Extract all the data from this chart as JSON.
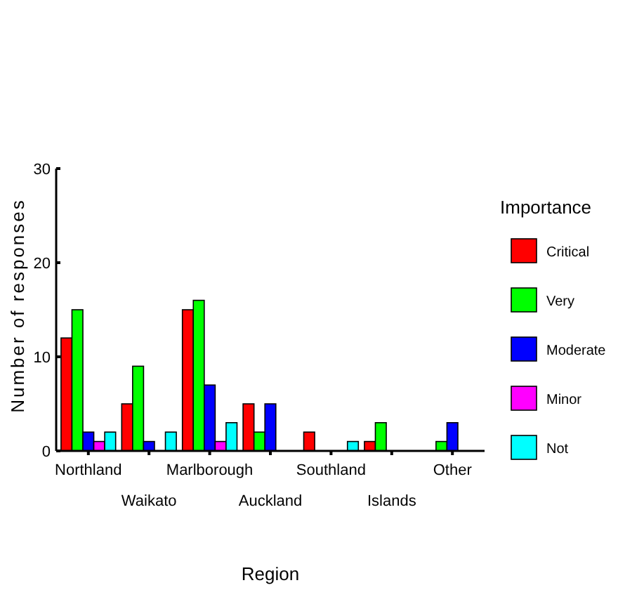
{
  "chart_data": {
    "type": "bar",
    "xlabel": "Region",
    "ylabel": "Number of responses",
    "legend_title": "Importance",
    "legend": "right",
    "grid": false,
    "categories": [
      "Northland",
      "Waikato",
      "Marlborough",
      "Auckland",
      "Southland",
      "Islands",
      "Other"
    ],
    "ylim": [
      0,
      30
    ],
    "yticks": [
      0,
      10,
      20,
      30
    ],
    "series": [
      {
        "name": "Critical",
        "color": "#ff0000",
        "values": [
          12,
          5,
          15,
          5,
          2,
          1,
          null
        ]
      },
      {
        "name": "Very",
        "color": "#00ff00",
        "values": [
          15,
          9,
          16,
          2,
          null,
          3,
          1
        ]
      },
      {
        "name": "Moderate",
        "color": "#0000ff",
        "values": [
          2,
          1,
          7,
          5,
          null,
          null,
          3
        ]
      },
      {
        "name": "Minor",
        "color": "#ff00ff",
        "values": [
          1,
          null,
          1,
          null,
          null,
          null,
          null
        ]
      },
      {
        "name": "Not",
        "color": "#00ffff",
        "values": [
          2,
          2,
          3,
          null,
          1,
          null,
          null
        ]
      }
    ]
  }
}
